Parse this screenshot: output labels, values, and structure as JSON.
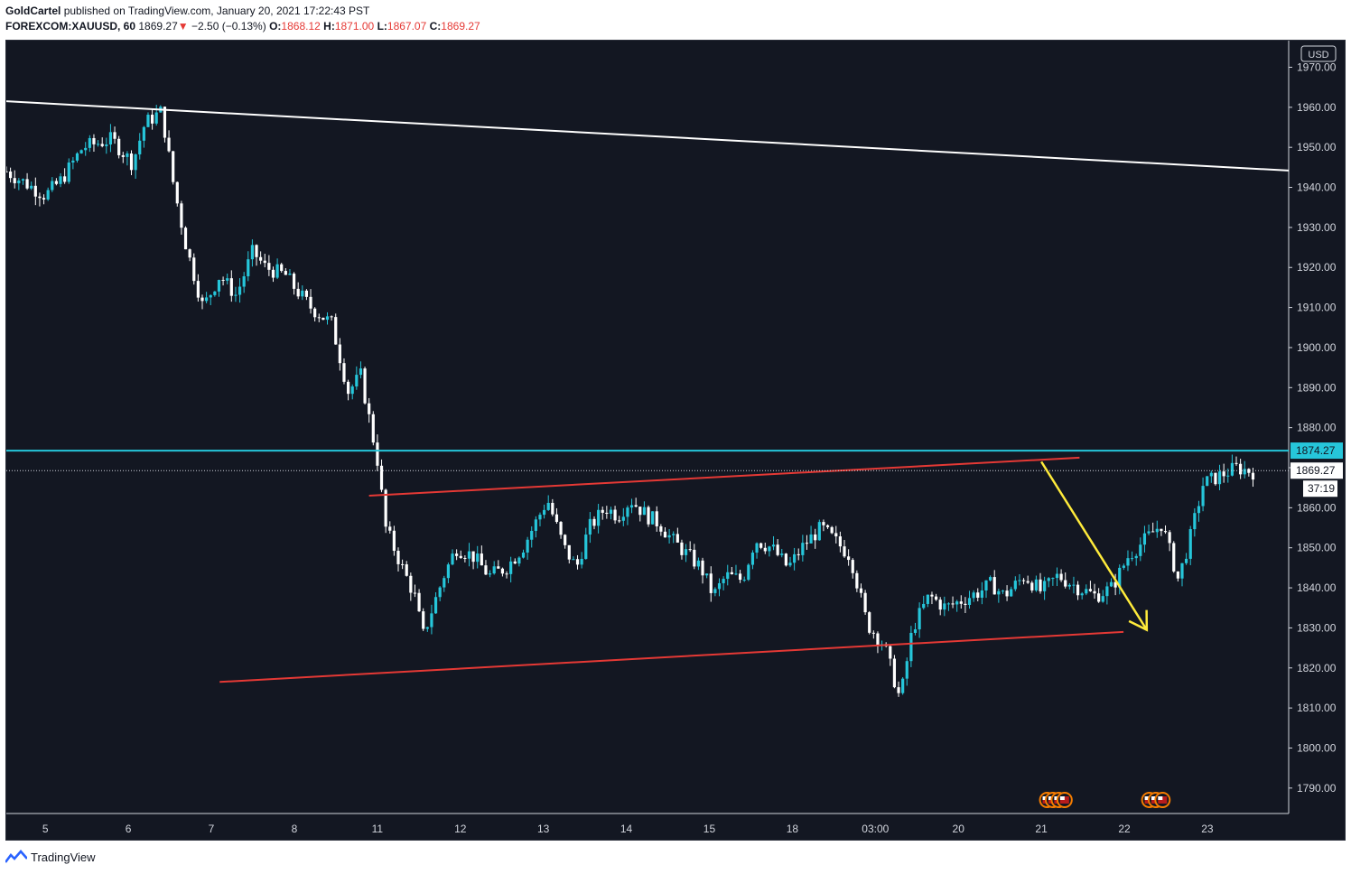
{
  "header": {
    "author": "GoldCartel",
    "published_text": "published on TradingView.com, January 20, 2021 17:22:43 PST",
    "symbol": "FOREXCOM:XAUUSD, 60",
    "last_price": "1869.27",
    "change_arrow": "▼",
    "change": "−2.50 (−0.13%)",
    "open_label": "O:",
    "open": "1868.12",
    "high_label": "H:",
    "high": "1871.00",
    "low_label": "L:",
    "low": "1867.07",
    "close_label": "C:",
    "close": "1869.27"
  },
  "footer": {
    "brand": "TradingView"
  },
  "chart_data": {
    "type": "candlestick",
    "currency": "USD",
    "ylim": [
      1785,
      1978
    ],
    "y_ticks": [
      "1970.00",
      "1960.00",
      "1950.00",
      "1940.00",
      "1930.00",
      "1920.00",
      "1910.00",
      "1900.00",
      "1890.00",
      "1880.00",
      "1870.00",
      "1860.00",
      "1850.00",
      "1840.00",
      "1830.00",
      "1820.00",
      "1810.00",
      "1800.00",
      "1790.00"
    ],
    "x_ticks": [
      "5",
      "6",
      "7",
      "8",
      "11",
      "12",
      "13",
      "14",
      "15",
      "18",
      "03:00",
      "20",
      "21",
      "22",
      "23"
    ],
    "x_tick_pos": [
      0,
      1,
      2,
      3,
      4,
      5,
      6,
      7,
      8,
      9,
      10,
      11,
      12,
      13,
      14
    ],
    "price_levels": {
      "horizontal_level": "1874.27",
      "last_price": "1869.27",
      "countdown": "37:19"
    },
    "colors": {
      "up": "#26c6da",
      "down": "#ffffff",
      "horizontal_level": "#26c6da",
      "channel": "#e53935",
      "trendline": "#ffffff",
      "arrow": "#ffeb3b",
      "background": "#131722"
    },
    "trendline": [
      [
        -0.47,
        1961.5
      ],
      [
        14.98,
        1944.2
      ]
    ],
    "channel_upper": [
      [
        3.9,
        1863
      ],
      [
        12.46,
        1872.5
      ]
    ],
    "channel_lower": [
      [
        2.1,
        1816.5
      ],
      [
        12.99,
        1829
      ]
    ],
    "projection_arrow": [
      [
        12.0,
        1871.5
      ],
      [
        13.27,
        1829.5
      ]
    ],
    "candle_path": [
      [
        -0.47,
        1944
      ],
      [
        0.0,
        1938
      ],
      [
        0.2,
        1942
      ],
      [
        0.45,
        1950
      ],
      [
        0.8,
        1952
      ],
      [
        1.05,
        1946
      ],
      [
        1.2,
        1956
      ],
      [
        1.4,
        1959
      ],
      [
        1.55,
        1940
      ],
      [
        1.7,
        1925
      ],
      [
        1.9,
        1910
      ],
      [
        2.1,
        1918
      ],
      [
        2.3,
        1913
      ],
      [
        2.5,
        1924
      ],
      [
        2.65,
        1920
      ],
      [
        2.9,
        1918
      ],
      [
        3.0,
        1915
      ],
      [
        3.2,
        1910
      ],
      [
        3.45,
        1906
      ],
      [
        3.65,
        1889
      ],
      [
        3.8,
        1893
      ],
      [
        4.0,
        1872
      ],
      [
        4.1,
        1855
      ],
      [
        4.3,
        1845
      ],
      [
        4.45,
        1838
      ],
      [
        4.55,
        1828
      ],
      [
        4.8,
        1843
      ],
      [
        4.95,
        1850
      ],
      [
        5.15,
        1848
      ],
      [
        5.35,
        1843
      ],
      [
        5.55,
        1845
      ],
      [
        5.75,
        1850
      ],
      [
        5.9,
        1856
      ],
      [
        6.05,
        1862
      ],
      [
        6.25,
        1850
      ],
      [
        6.4,
        1845
      ],
      [
        6.55,
        1855
      ],
      [
        6.75,
        1860
      ],
      [
        6.9,
        1858
      ],
      [
        7.05,
        1862
      ],
      [
        7.25,
        1858
      ],
      [
        7.4,
        1856
      ],
      [
        7.55,
        1852
      ],
      [
        7.75,
        1848
      ],
      [
        7.9,
        1845
      ],
      [
        8.05,
        1838
      ],
      [
        8.2,
        1843
      ],
      [
        8.4,
        1842
      ],
      [
        8.55,
        1852
      ],
      [
        8.75,
        1850
      ],
      [
        8.95,
        1845
      ],
      [
        9.15,
        1851
      ],
      [
        9.35,
        1855
      ],
      [
        9.5,
        1852
      ],
      [
        9.7,
        1848
      ],
      [
        9.9,
        1831
      ],
      [
        10.1,
        1826
      ],
      [
        10.3,
        1812
      ],
      [
        10.45,
        1830
      ],
      [
        10.65,
        1838
      ],
      [
        10.85,
        1835
      ],
      [
        11.05,
        1837
      ],
      [
        11.25,
        1839
      ],
      [
        11.4,
        1841
      ],
      [
        11.55,
        1838
      ],
      [
        11.8,
        1843
      ],
      [
        12.0,
        1839
      ],
      [
        12.2,
        1843
      ],
      [
        12.45,
        1840
      ],
      [
        12.65,
        1838
      ],
      [
        12.85,
        1840
      ],
      [
        13.05,
        1848
      ],
      [
        13.25,
        1852
      ],
      [
        13.45,
        1856
      ],
      [
        13.65,
        1842
      ],
      [
        13.8,
        1853
      ],
      [
        13.95,
        1866
      ],
      [
        14.15,
        1868
      ],
      [
        14.35,
        1870
      ],
      [
        14.55,
        1869
      ]
    ]
  }
}
